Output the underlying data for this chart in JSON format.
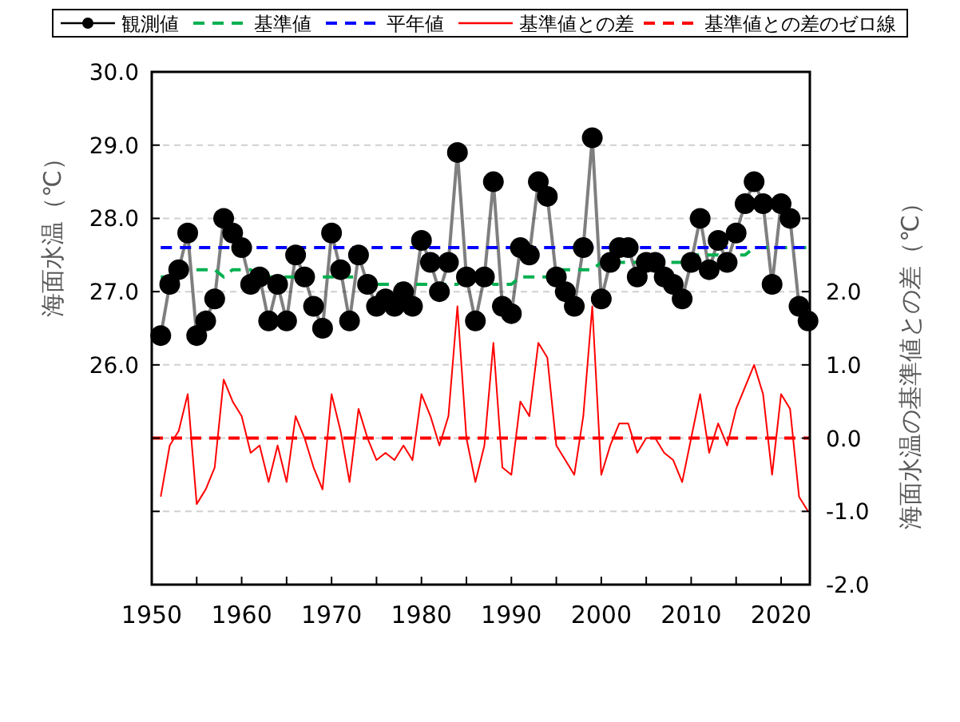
{
  "chart_data": {
    "type": "line",
    "ylabel": "海面水温（℃）",
    "y2label": "海面水温の基準値との差（℃）",
    "x": [
      1951,
      1952,
      1953,
      1954,
      1955,
      1956,
      1957,
      1958,
      1959,
      1960,
      1961,
      1962,
      1963,
      1964,
      1965,
      1966,
      1967,
      1968,
      1969,
      1970,
      1971,
      1972,
      1973,
      1974,
      1975,
      1976,
      1977,
      1978,
      1979,
      1980,
      1981,
      1982,
      1983,
      1984,
      1985,
      1986,
      1987,
      1988,
      1989,
      1990,
      1991,
      1992,
      1993,
      1994,
      1995,
      1996,
      1997,
      1998,
      1999,
      2000,
      2001,
      2002,
      2003,
      2004,
      2005,
      2006,
      2007,
      2008,
      2009,
      2010,
      2011,
      2012,
      2013,
      2014,
      2015,
      2016,
      2017,
      2018,
      2019,
      2020,
      2021,
      2022,
      2023
    ],
    "series": [
      {
        "name": "観測値",
        "color": "#000000",
        "marker": "circle",
        "line_style": "solid",
        "values": [
          26.4,
          27.1,
          27.3,
          27.8,
          26.4,
          26.6,
          26.9,
          28.0,
          27.8,
          27.6,
          27.1,
          27.2,
          26.6,
          27.1,
          26.6,
          27.5,
          27.2,
          26.8,
          26.5,
          27.8,
          27.3,
          26.6,
          27.5,
          27.1,
          26.8,
          26.9,
          26.8,
          27.0,
          26.8,
          27.7,
          27.4,
          27.0,
          27.4,
          28.9,
          27.2,
          26.6,
          27.2,
          28.5,
          26.8,
          26.7,
          27.6,
          27.5,
          28.5,
          28.3,
          27.2,
          27.0,
          26.8,
          27.6,
          29.1,
          26.9,
          27.4,
          27.6,
          27.6,
          27.2,
          27.4,
          27.4,
          27.2,
          27.1,
          26.9,
          27.4,
          28.0,
          27.3,
          27.7,
          27.4,
          27.8,
          28.2,
          28.5,
          28.2,
          27.1,
          28.2,
          28.0,
          26.8,
          26.6
        ]
      },
      {
        "name": "基準値",
        "color": "#00b050",
        "marker": "none",
        "line_style": "dashed",
        "values": [
          27.2,
          27.2,
          27.2,
          27.3,
          27.3,
          27.3,
          27.3,
          27.2,
          27.3,
          27.3,
          27.3,
          27.2,
          27.2,
          27.2,
          27.2,
          27.2,
          27.2,
          27.2,
          27.2,
          27.2,
          27.2,
          27.2,
          27.2,
          27.1,
          27.1,
          27.1,
          27.1,
          27.1,
          27.1,
          27.1,
          27.1,
          27.1,
          27.1,
          27.1,
          27.2,
          27.2,
          27.2,
          27.1,
          27.1,
          27.1,
          27.2,
          27.2,
          27.2,
          27.2,
          27.3,
          27.3,
          27.3,
          27.3,
          27.3,
          27.4,
          27.4,
          27.4,
          27.4,
          27.4,
          27.4,
          27.4,
          27.4,
          27.4,
          27.4,
          27.5,
          27.5,
          27.5,
          27.5,
          27.4,
          27.5,
          27.5,
          27.6,
          27.6,
          27.6,
          27.6,
          27.6,
          27.6,
          27.6
        ]
      },
      {
        "name": "平年値",
        "color": "#0000ff",
        "marker": "none",
        "line_style": "dashed",
        "x": [
          1951,
          2023
        ],
        "values": [
          27.6,
          27.6
        ]
      },
      {
        "name": "基準値との差",
        "color": "#ff0000",
        "marker": "none",
        "line_style": "solid",
        "axis": "y2",
        "values": [
          -0.8,
          -0.1,
          0.1,
          0.6,
          -0.9,
          -0.7,
          -0.4,
          0.8,
          0.5,
          0.3,
          -0.2,
          -0.1,
          -0.6,
          -0.1,
          -0.6,
          0.3,
          0.0,
          -0.4,
          -0.7,
          0.6,
          0.1,
          -0.6,
          0.4,
          0.0,
          -0.3,
          -0.2,
          -0.3,
          -0.1,
          -0.3,
          0.6,
          0.3,
          -0.1,
          0.3,
          1.8,
          0.0,
          -0.6,
          -0.1,
          1.3,
          -0.4,
          -0.5,
          0.5,
          0.3,
          1.3,
          1.1,
          -0.1,
          -0.3,
          -0.5,
          0.3,
          1.8,
          -0.5,
          -0.1,
          0.2,
          0.2,
          -0.2,
          0.0,
          0.0,
          -0.2,
          -0.3,
          -0.6,
          0.0,
          0.6,
          -0.2,
          0.2,
          -0.1,
          0.4,
          0.7,
          1.0,
          0.6,
          -0.5,
          0.6,
          0.4,
          -0.8,
          -1.0
        ]
      },
      {
        "name": "基準値との差のゼロ線",
        "color": "#ff0000",
        "marker": "none",
        "line_style": "dashed",
        "axis": "y2",
        "x": [
          1950,
          2023.2
        ],
        "values": [
          0,
          0
        ]
      }
    ],
    "xlim": [
      1950,
      2023.2
    ],
    "xticks": [
      1950,
      {
        "value": 1955,
        "label": null
      },
      1960,
      {
        "value": 1965,
        "label": null
      },
      1970,
      {
        "value": 1975,
        "label": null
      },
      1980,
      {
        "value": 1985,
        "label": null
      },
      1990,
      {
        "value": 1995,
        "label": null
      },
      2000,
      {
        "value": 2005,
        "label": null
      },
      2010,
      {
        "value": 2015,
        "label": null
      },
      2020
    ],
    "ylim": [
      23,
      30
    ],
    "yticks": [
      {
        "value": 24,
        "label": null
      },
      {
        "value": 25,
        "label": null
      },
      {
        "value": 26,
        "label": "26.0"
      },
      {
        "value": 27,
        "label": "27.0"
      },
      {
        "value": 28,
        "label": "28.0"
      },
      {
        "value": 29,
        "label": "29.0"
      },
      {
        "value": 30,
        "label": "30.0"
      }
    ],
    "y2lim": [
      -2,
      5
    ],
    "y2ticks": [
      {
        "value": -2,
        "label": "-2.0"
      },
      {
        "value": -1,
        "label": "-1.0"
      },
      {
        "value": 0,
        "label": "0.0"
      },
      {
        "value": 1,
        "label": "1.0"
      },
      {
        "value": 2,
        "label": "2.0"
      },
      {
        "value": 3,
        "label": null
      },
      {
        "value": 4,
        "label": null
      }
    ],
    "grid": "y",
    "legend": "top"
  }
}
